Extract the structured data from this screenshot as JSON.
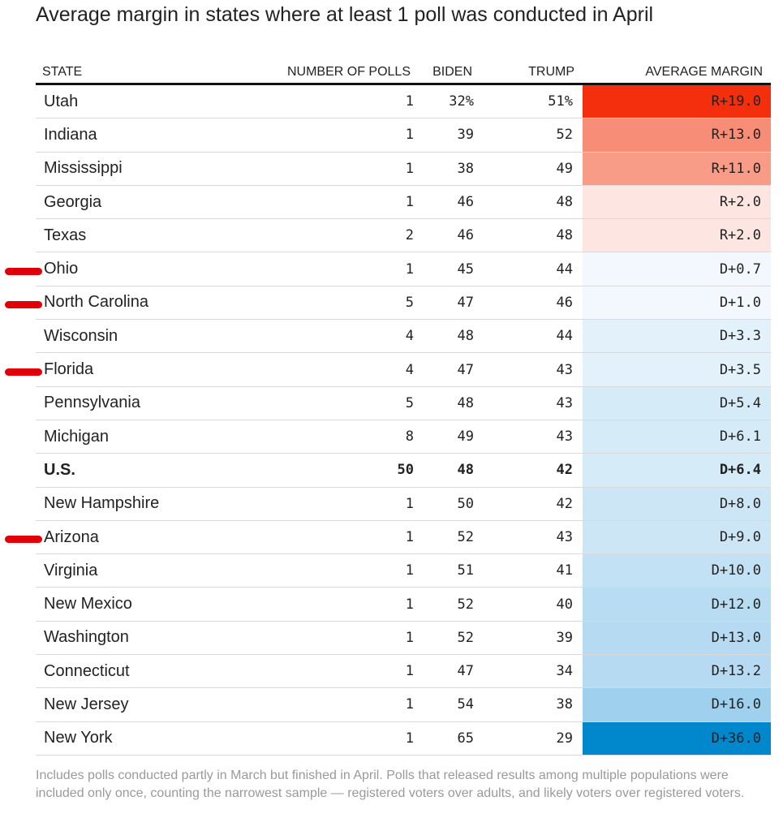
{
  "title": "Average margin in states where at least 1 poll was conducted in April",
  "chart_data": {
    "type": "table",
    "columns": [
      "STATE",
      "NUMBER OF POLLS",
      "BIDEN",
      "TRUMP",
      "AVERAGE MARGIN"
    ],
    "rows": [
      {
        "state": "Utah",
        "polls": "1",
        "biden": "32%",
        "trump": "51%",
        "margin": "R+19.0",
        "color": "#f32f0d"
      },
      {
        "state": "Indiana",
        "polls": "1",
        "biden": "39",
        "trump": "52",
        "margin": "R+13.0",
        "color": "#f78d76"
      },
      {
        "state": "Mississippi",
        "polls": "1",
        "biden": "38",
        "trump": "49",
        "margin": "R+11.0",
        "color": "#f89c87"
      },
      {
        "state": "Georgia",
        "polls": "1",
        "biden": "46",
        "trump": "48",
        "margin": "R+2.0",
        "color": "#fde5e2"
      },
      {
        "state": "Texas",
        "polls": "2",
        "biden": "46",
        "trump": "48",
        "margin": "R+2.0",
        "color": "#fde5e2"
      },
      {
        "state": "Ohio",
        "polls": "1",
        "biden": "45",
        "trump": "44",
        "margin": "D+0.7",
        "color": "#f2f8fd"
      },
      {
        "state": "North Carolina",
        "polls": "5",
        "biden": "47",
        "trump": "46",
        "margin": "D+1.0",
        "color": "#f2f8fd"
      },
      {
        "state": "Wisconsin",
        "polls": "4",
        "biden": "48",
        "trump": "44",
        "margin": "D+3.3",
        "color": "#e3f1fa"
      },
      {
        "state": "Florida",
        "polls": "4",
        "biden": "47",
        "trump": "43",
        "margin": "D+3.5",
        "color": "#e3f1fa"
      },
      {
        "state": "Pennsylvania",
        "polls": "5",
        "biden": "48",
        "trump": "43",
        "margin": "D+5.4",
        "color": "#d6ebf8"
      },
      {
        "state": "Michigan",
        "polls": "8",
        "biden": "49",
        "trump": "43",
        "margin": "D+6.1",
        "color": "#d6ebf8"
      },
      {
        "state": "U.S.",
        "polls": "50",
        "biden": "48",
        "trump": "42",
        "margin": "D+6.4",
        "color": "#d6ebf8",
        "bold": true
      },
      {
        "state": "New Hampshire",
        "polls": "1",
        "biden": "50",
        "trump": "42",
        "margin": "D+8.0",
        "color": "#cde6f6"
      },
      {
        "state": "Arizona",
        "polls": "1",
        "biden": "52",
        "trump": "43",
        "margin": "D+9.0",
        "color": "#cde6f6"
      },
      {
        "state": "Virginia",
        "polls": "1",
        "biden": "51",
        "trump": "41",
        "margin": "D+10.0",
        "color": "#c3e1f4"
      },
      {
        "state": "New Mexico",
        "polls": "1",
        "biden": "52",
        "trump": "40",
        "margin": "D+12.0",
        "color": "#b8dcf2"
      },
      {
        "state": "Washington",
        "polls": "1",
        "biden": "52",
        "trump": "39",
        "margin": "D+13.0",
        "color": "#b5daf1"
      },
      {
        "state": "Connecticut",
        "polls": "1",
        "biden": "47",
        "trump": "34",
        "margin": "D+13.2",
        "color": "#b5daf1"
      },
      {
        "state": "New Jersey",
        "polls": "1",
        "biden": "54",
        "trump": "38",
        "margin": "D+16.0",
        "color": "#9fd0ee"
      },
      {
        "state": "New York",
        "polls": "1",
        "biden": "65",
        "trump": "29",
        "margin": "D+36.0",
        "color": "#0087cc"
      }
    ],
    "annotations": [
      {
        "row": "Ohio",
        "mark": "red-underline"
      },
      {
        "row": "North Carolina",
        "mark": "red-underline"
      },
      {
        "row": "Florida",
        "mark": "red-underline"
      },
      {
        "row": "Arizona",
        "mark": "red-underline"
      }
    ]
  },
  "footnote": "Includes polls conducted partly in March but finished in April. Polls that released results among multiple populations were included only once, counting the narrowest sample — registered voters over adults, and likely voters over registered voters."
}
